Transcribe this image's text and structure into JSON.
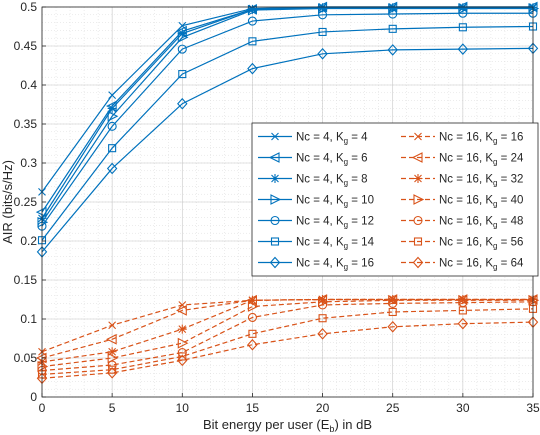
{
  "chart_data": {
    "type": "line",
    "xlabel_pre": "Bit energy per user (E",
    "xlabel_sub": "b",
    "xlabel_post": ") in dB",
    "ylabel": "AIR (bits/s/Hz)",
    "xlim": [
      0,
      35
    ],
    "ylim": [
      0,
      0.5
    ],
    "xticks": [
      0,
      5,
      10,
      15,
      20,
      25,
      30,
      35
    ],
    "xtick_labels": [
      "0",
      "5",
      "10",
      "15",
      "20",
      "25",
      "30",
      "35"
    ],
    "yticks": [
      0,
      0.05,
      0.1,
      0.15,
      0.2,
      0.25,
      0.3,
      0.35,
      0.4,
      0.45,
      0.5
    ],
    "ytick_labels": [
      "0",
      "0.05",
      "0.1",
      "0.15",
      "0.2",
      "0.25",
      "0.3",
      "0.35",
      "0.4",
      "0.45",
      "0.5"
    ],
    "grid": true,
    "legend_position": "center-right",
    "colors": {
      "nc4": "#0072BD",
      "nc16": "#D95319"
    },
    "x": [
      0,
      5,
      10,
      15,
      20,
      25,
      30,
      35
    ],
    "series": [
      {
        "name": "Nc = 4, K",
        "sub": "g",
        "val": " = 4",
        "group": "nc4",
        "style": "solid",
        "marker": "x",
        "values": [
          0.263,
          0.387,
          0.476,
          0.498,
          0.5,
          0.5,
          0.5,
          0.5
        ]
      },
      {
        "name": "Nc = 4, K",
        "sub": "g",
        "val": " = 6",
        "group": "nc4",
        "style": "solid",
        "marker": "triangle-left",
        "values": [
          0.237,
          0.373,
          0.469,
          0.497,
          0.5,
          0.5,
          0.5,
          0.5
        ]
      },
      {
        "name": "Nc = 4, K",
        "sub": "g",
        "val": " = 8",
        "group": "nc4",
        "style": "solid",
        "marker": "asterisk",
        "values": [
          0.229,
          0.37,
          0.466,
          0.497,
          0.499,
          0.499,
          0.499,
          0.499
        ]
      },
      {
        "name": "Nc = 4, K",
        "sub": "g",
        "val": " = 10",
        "group": "nc4",
        "style": "solid",
        "marker": "triangle-right",
        "values": [
          0.224,
          0.36,
          0.461,
          0.496,
          0.498,
          0.498,
          0.498,
          0.498
        ]
      },
      {
        "name": "Nc = 4, K",
        "sub": "g",
        "val": " = 12",
        "group": "nc4",
        "style": "solid",
        "marker": "circle",
        "values": [
          0.219,
          0.347,
          0.446,
          0.482,
          0.49,
          0.491,
          0.492,
          0.492
        ]
      },
      {
        "name": "Nc = 4, K",
        "sub": "g",
        "val": " = 14",
        "group": "nc4",
        "style": "solid",
        "marker": "square",
        "values": [
          0.201,
          0.319,
          0.414,
          0.456,
          0.468,
          0.472,
          0.474,
          0.475
        ]
      },
      {
        "name": "Nc = 4, K",
        "sub": "g",
        "val": " = 16",
        "group": "nc4",
        "style": "solid",
        "marker": "diamond",
        "values": [
          0.186,
          0.293,
          0.376,
          0.421,
          0.44,
          0.445,
          0.446,
          0.447
        ]
      },
      {
        "name": "Nc = 16, K",
        "sub": "g",
        "val": " = 16",
        "group": "nc16",
        "style": "dashed",
        "marker": "x",
        "values": [
          0.058,
          0.092,
          0.118,
          0.124,
          0.125,
          0.125,
          0.125,
          0.125
        ]
      },
      {
        "name": "Nc = 16, K",
        "sub": "g",
        "val": " = 24",
        "group": "nc16",
        "style": "dashed",
        "marker": "triangle-left",
        "values": [
          0.05,
          0.074,
          0.111,
          0.124,
          0.125,
          0.125,
          0.125,
          0.125
        ]
      },
      {
        "name": "Nc = 16, K",
        "sub": "g",
        "val": " = 32",
        "group": "nc16",
        "style": "dashed",
        "marker": "asterisk",
        "values": [
          0.045,
          0.058,
          0.087,
          0.124,
          0.125,
          0.125,
          0.125,
          0.125
        ]
      },
      {
        "name": "Nc = 16, K",
        "sub": "g",
        "val": " = 40",
        "group": "nc16",
        "style": "dashed",
        "marker": "triangle-right",
        "values": [
          0.039,
          0.05,
          0.069,
          0.116,
          0.122,
          0.124,
          0.124,
          0.124
        ]
      },
      {
        "name": "Nc = 16, K",
        "sub": "g",
        "val": " = 48",
        "group": "nc16",
        "style": "dashed",
        "marker": "circle",
        "values": [
          0.034,
          0.041,
          0.057,
          0.102,
          0.118,
          0.12,
          0.121,
          0.122
        ]
      },
      {
        "name": "Nc = 16, K",
        "sub": "g",
        "val": " = 56",
        "group": "nc16",
        "style": "dashed",
        "marker": "square",
        "values": [
          0.029,
          0.035,
          0.052,
          0.081,
          0.101,
          0.109,
          0.111,
          0.113
        ]
      },
      {
        "name": "Nc = 16, K",
        "sub": "g",
        "val": " = 64",
        "group": "nc16",
        "style": "dashed",
        "marker": "diamond",
        "values": [
          0.024,
          0.031,
          0.047,
          0.067,
          0.081,
          0.09,
          0.094,
          0.096
        ]
      }
    ]
  }
}
